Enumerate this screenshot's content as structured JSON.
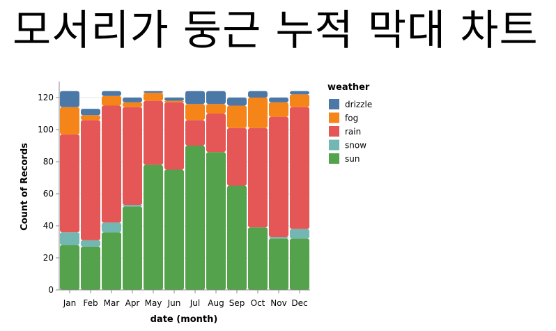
{
  "page": {
    "title": "모서리가 둥근 누적 막대 차트"
  },
  "chart_data": {
    "type": "bar",
    "stacked": true,
    "rounded_corners": true,
    "xlabel": "date (month)",
    "ylabel": "Count of Records",
    "ylim": [
      0,
      130
    ],
    "y_ticks": [
      0,
      20,
      40,
      60,
      80,
      100,
      120
    ],
    "grid": true,
    "legend_position": "right",
    "legend_title": "weather",
    "categories": [
      "Jan",
      "Feb",
      "Mar",
      "Apr",
      "May",
      "Jun",
      "Jul",
      "Aug",
      "Sep",
      "Oct",
      "Nov",
      "Dec"
    ],
    "series": [
      {
        "name": "sun",
        "color": "#54a24b",
        "values": [
          28,
          27,
          36,
          52,
          78,
          75,
          90,
          86,
          65,
          39,
          32,
          32
        ]
      },
      {
        "name": "snow",
        "color": "#72b7b2",
        "values": [
          8,
          4,
          6,
          1,
          0,
          0,
          0,
          0,
          0,
          0,
          1,
          6
        ]
      },
      {
        "name": "rain",
        "color": "#e45756",
        "values": [
          61,
          75,
          73,
          61,
          40,
          42,
          16,
          24,
          36,
          62,
          75,
          76
        ]
      },
      {
        "name": "fog",
        "color": "#f58518",
        "values": [
          17,
          3,
          6,
          3,
          5,
          1,
          10,
          6,
          14,
          19,
          9,
          8
        ]
      },
      {
        "name": "drizzle",
        "color": "#4c78a8",
        "values": [
          10,
          4,
          3,
          3,
          1,
          2,
          8,
          8,
          5,
          4,
          3,
          2
        ]
      }
    ],
    "legend_order": [
      "drizzle",
      "fog",
      "rain",
      "snow",
      "sun"
    ]
  }
}
